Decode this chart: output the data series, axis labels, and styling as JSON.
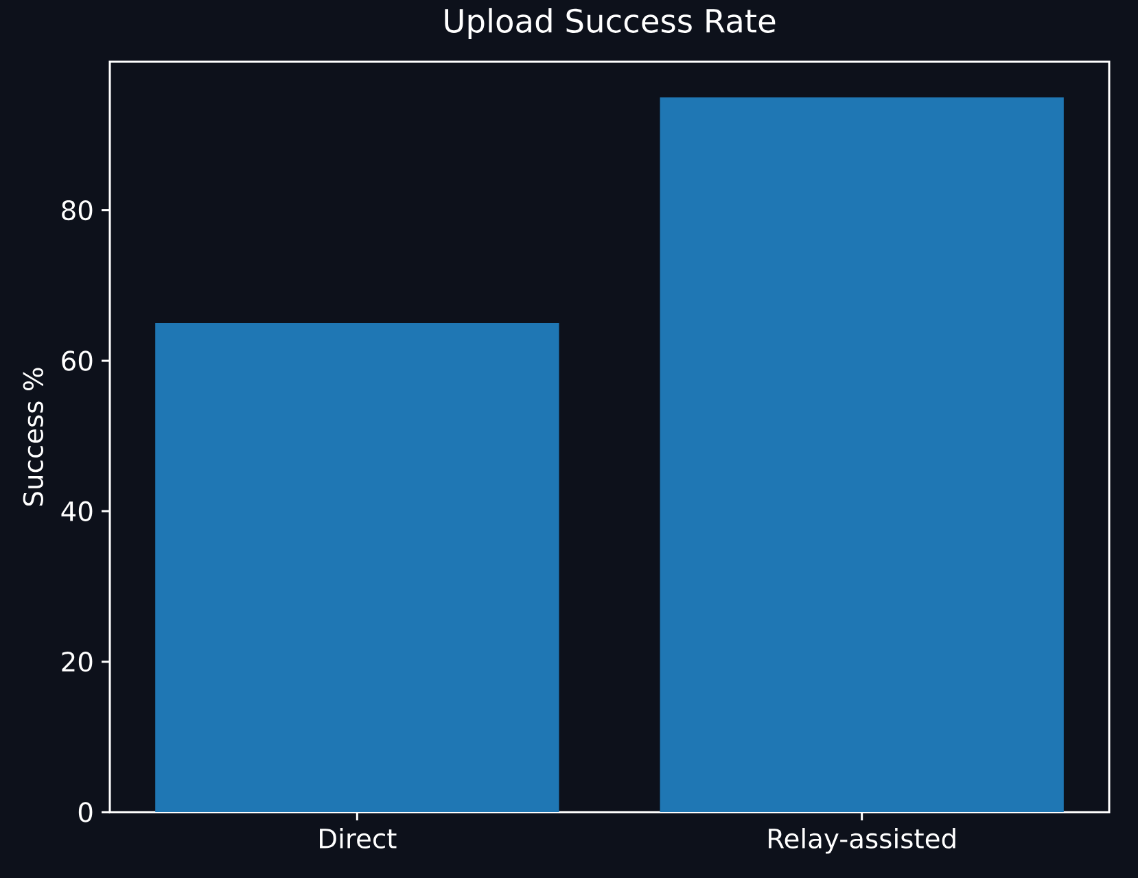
{
  "chart_data": {
    "type": "bar",
    "title": "Upload Success Rate",
    "ylabel": "Success %",
    "categories": [
      "Direct",
      "Relay-assisted"
    ],
    "values": [
      65,
      95
    ],
    "color": "#1f77b4",
    "ylim": [
      0,
      99.75
    ],
    "yticks": [
      0,
      20,
      40,
      60,
      80
    ]
  }
}
